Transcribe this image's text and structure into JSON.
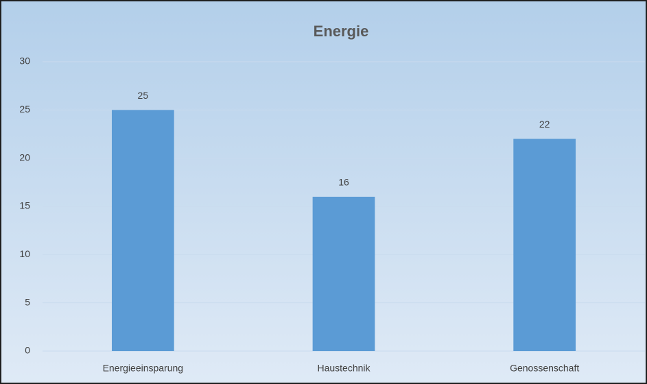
{
  "chart_data": {
    "type": "bar",
    "title": "Energie",
    "categories": [
      "Energieeinsparung",
      "Haustechnik",
      "Genossenschaft"
    ],
    "values": [
      25,
      16,
      22
    ],
    "color": "#5b9bd5",
    "ylim": [
      0,
      30
    ],
    "yticks": [
      0,
      5,
      10,
      15,
      20,
      25,
      30
    ],
    "grid": true,
    "data_labels": true
  }
}
